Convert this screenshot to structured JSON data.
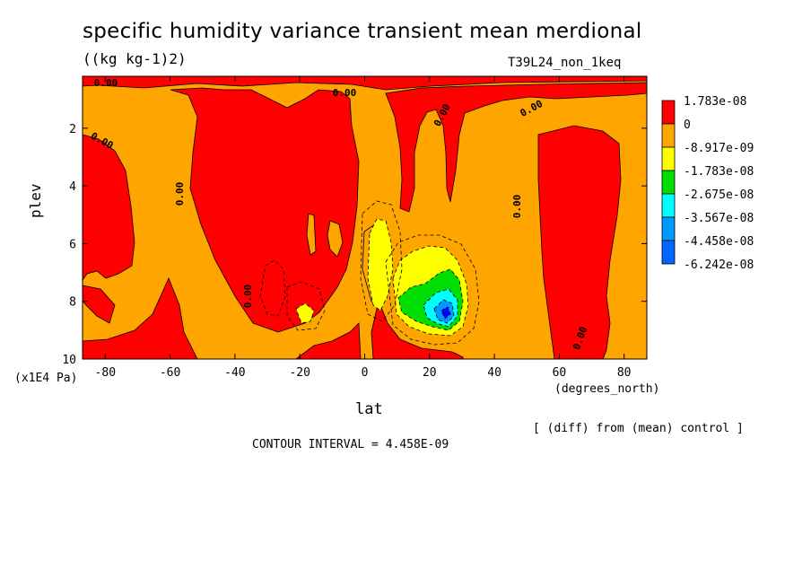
{
  "chart_data": {
    "type": "heatmap",
    "title": "specific humidity variance transient mean merdional",
    "units": "((kg kg-1)2)",
    "run_label": "T39L24_non_1keq",
    "xlabel": "lat",
    "x_units": "(degrees_north)",
    "ylabel": "plev",
    "y_units": "(x1E4 Pa)",
    "xlim": [
      -87,
      87
    ],
    "ylim": [
      10,
      0.2
    ],
    "x_ticks": [
      -80,
      -60,
      -40,
      -20,
      0,
      20,
      40,
      60,
      80
    ],
    "x_tick_labels": [
      "-80",
      "-60",
      "-40",
      "-20",
      "0",
      "20",
      "40",
      "60",
      "80"
    ],
    "y_ticks": [
      2,
      4,
      6,
      8,
      10
    ],
    "y_tick_labels": [
      "2",
      "4",
      "6",
      "8",
      "10"
    ],
    "contour_labels": [
      "0.00",
      "0.00",
      "0.00",
      "0.00",
      "0.00",
      "0.00",
      "0.00",
      "0.00",
      "0.00"
    ],
    "contour_interval_text": "CONTOUR INTERVAL = 4.458E-09",
    "diff_note": "[ (diff) from (mean) control ]",
    "legend": {
      "position": "right",
      "levels": [
        "1.783e-08",
        "0",
        "-8.917e-09",
        "-1.783e-08",
        "-2.675e-08",
        "-3.567e-08",
        "-4.458e-08",
        "-6.242e-08"
      ],
      "colors": [
        "#ff0000",
        "#ffa500",
        "#ffff00",
        "#00ff00",
        "#00ffff",
        "#0099ff",
        "#0000ff",
        "#0066ff"
      ]
    }
  },
  "colors": {
    "positive": "#ff0000",
    "zero_band": "#ffa500",
    "level1": "#ffff00",
    "level2": "#00dd00",
    "level3": "#00ffff",
    "level4": "#0099ff",
    "level5": "#0000ff"
  }
}
